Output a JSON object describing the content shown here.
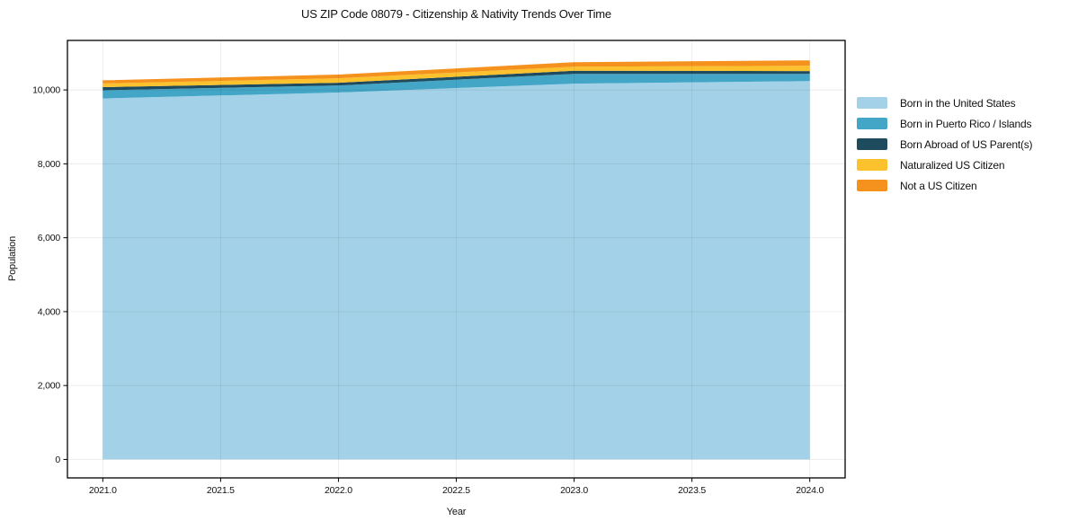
{
  "chart_data": {
    "type": "area",
    "stacked": true,
    "title": "US ZIP Code 08079 - Citizenship & Nativity Trends Over Time",
    "xlabel": "Year",
    "ylabel": "Population",
    "x": [
      2021,
      2022,
      2023,
      2024
    ],
    "series": [
      {
        "name": "Born in the United States",
        "color": "#A3D2E8",
        "values": [
          9770,
          9930,
          10170,
          10240
        ]
      },
      {
        "name": "Born in Puerto Rico / Islands",
        "color": "#44A6C6",
        "values": [
          220,
          190,
          265,
          195
        ]
      },
      {
        "name": "Born Abroad of US Parent(s)",
        "color": "#1F4B5E",
        "values": [
          85,
          75,
          85,
          75
        ]
      },
      {
        "name": "Naturalized US Citizen",
        "color": "#FCC22D",
        "values": [
          100,
          120,
          110,
          145
        ]
      },
      {
        "name": "Not a US Citizen",
        "color": "#F5921E",
        "values": [
          85,
          100,
          120,
          145
        ]
      }
    ],
    "xticks": [
      2021.0,
      2021.5,
      2022.0,
      2022.5,
      2023.0,
      2023.5,
      2024.0
    ],
    "xtick_labels": [
      "2021.0",
      "2021.5",
      "2022.0",
      "2022.5",
      "2023.0",
      "2023.5",
      "2024.0"
    ],
    "yticks": [
      0,
      2000,
      4000,
      6000,
      8000,
      10000
    ],
    "ytick_labels": [
      "0",
      "2,000",
      "4,000",
      "6,000",
      "8,000",
      "10,000"
    ],
    "xlim": [
      2020.85,
      2024.15
    ],
    "ylim": [
      -500,
      11340
    ],
    "grid": true,
    "legend_position": "right",
    "grid_color": "rgba(0,0,0,0.08)",
    "spine_color": "#000000"
  }
}
